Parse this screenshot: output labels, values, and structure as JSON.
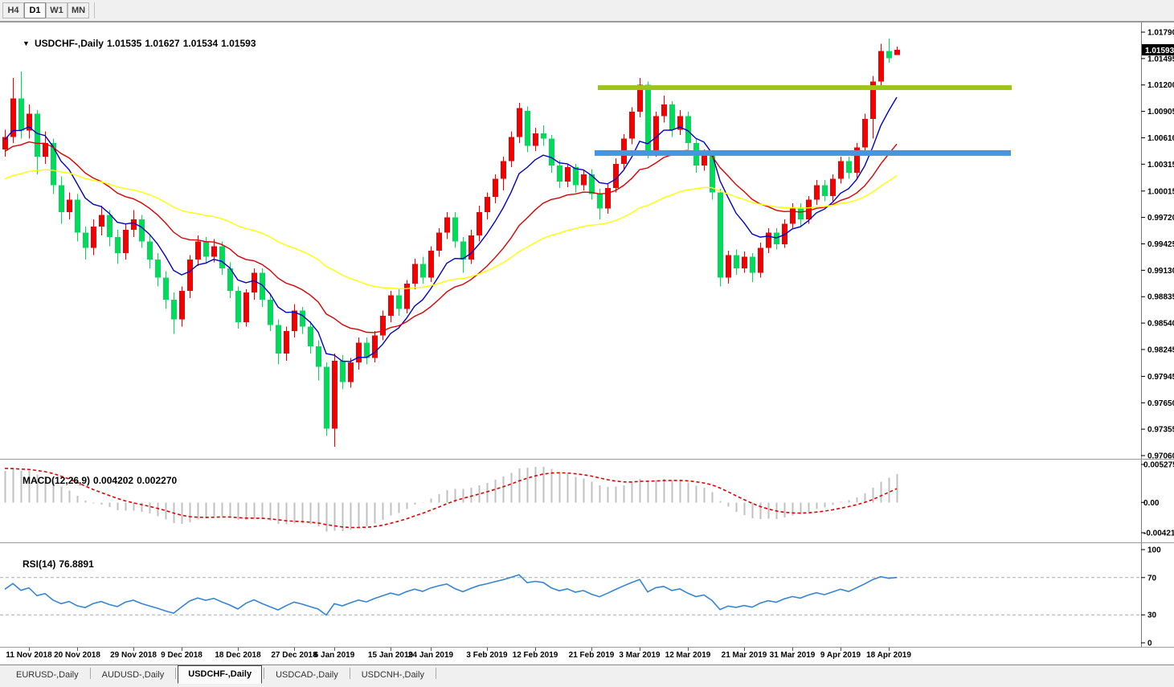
{
  "toolbar": {
    "timeframes": [
      {
        "label": "H4",
        "active": false
      },
      {
        "label": "D1",
        "active": true
      },
      {
        "label": "W1",
        "active": false
      },
      {
        "label": "MN",
        "active": false
      }
    ]
  },
  "main_chart": {
    "header": {
      "dropdown_glyph": "▼",
      "symbol": "USDCHF-,Daily",
      "open": "1.01535",
      "high": "1.01627",
      "low": "1.01534",
      "close": "1.01593"
    },
    "current_price_label": "1.01593"
  },
  "chart_data": {
    "type": "candlestick",
    "symbol": "USDCHF-,Daily",
    "timeframe": "D1",
    "bull_color": "#f20000",
    "bear_color": "#00dc5a",
    "price_axis": {
      "max": 1.0179,
      "min": 0.9706,
      "ticks": [
        "1.01790",
        "1.01495",
        "1.01200",
        "1.00905",
        "1.00610",
        "1.00315",
        "1.00015",
        "0.99720",
        "0.99425",
        "0.99130",
        "0.98835",
        "0.98540",
        "0.98245",
        "0.97945",
        "0.97650",
        "0.97355",
        "0.97060"
      ]
    },
    "current_price": 1.01593,
    "candles": [
      [
        1.0048,
        1.007,
        1.004,
        1.0062
      ],
      [
        1.0062,
        1.0128,
        1.0055,
        1.0105
      ],
      [
        1.0105,
        1.0135,
        1.006,
        1.0069
      ],
      [
        1.0069,
        1.0098,
        1.006,
        1.0088
      ],
      [
        1.0088,
        1.0092,
        1.002,
        1.004
      ],
      [
        1.004,
        1.0068,
        1.0032,
        1.0055
      ],
      [
        1.0055,
        1.006,
        0.9998,
        1.0008
      ],
      [
        1.0008,
        1.0018,
        0.9965,
        0.9978
      ],
      [
        0.9978,
        1.0,
        0.997,
        0.9992
      ],
      [
        0.9992,
        0.9998,
        0.9945,
        0.9955
      ],
      [
        0.9955,
        0.9962,
        0.9925,
        0.9938
      ],
      [
        0.9938,
        0.997,
        0.993,
        0.9962
      ],
      [
        0.9962,
        0.9985,
        0.9952,
        0.9975
      ],
      [
        0.9975,
        0.998,
        0.994,
        0.995
      ],
      [
        0.995,
        0.9958,
        0.992,
        0.9932
      ],
      [
        0.9932,
        0.9965,
        0.9925,
        0.9958
      ],
      [
        0.9958,
        0.998,
        0.995,
        0.997
      ],
      [
        0.997,
        0.9975,
        0.9938,
        0.9945
      ],
      [
        0.9945,
        0.9952,
        0.9915,
        0.9925
      ],
      [
        0.9925,
        0.9932,
        0.9895,
        0.9905
      ],
      [
        0.9905,
        0.9912,
        0.987,
        0.988
      ],
      [
        0.988,
        0.9888,
        0.9842,
        0.9858
      ],
      [
        0.9858,
        0.9895,
        0.985,
        0.989
      ],
      [
        0.989,
        0.993,
        0.9882,
        0.9925
      ],
      [
        0.9925,
        0.9952,
        0.9918,
        0.9945
      ],
      [
        0.9945,
        0.995,
        0.992,
        0.9928
      ],
      [
        0.9928,
        0.9948,
        0.9922,
        0.994
      ],
      [
        0.994,
        0.9945,
        0.9908,
        0.9915
      ],
      [
        0.9915,
        0.9922,
        0.9882,
        0.989
      ],
      [
        0.989,
        0.9895,
        0.9848,
        0.9855
      ],
      [
        0.9855,
        0.9892,
        0.985,
        0.9888
      ],
      [
        0.9888,
        0.9915,
        0.988,
        0.991
      ],
      [
        0.991,
        0.9915,
        0.9872,
        0.988
      ],
      [
        0.988,
        0.9886,
        0.9845,
        0.9852
      ],
      [
        0.9852,
        0.9858,
        0.9808,
        0.982
      ],
      [
        0.982,
        0.985,
        0.9812,
        0.9845
      ],
      [
        0.9845,
        0.9875,
        0.9838,
        0.9868
      ],
      [
        0.9868,
        0.9872,
        0.9842,
        0.985
      ],
      [
        0.985,
        0.9856,
        0.982,
        0.9828
      ],
      [
        0.9828,
        0.9835,
        0.979,
        0.9805
      ],
      [
        0.9805,
        0.981,
        0.9728,
        0.9736
      ],
      [
        0.9736,
        0.982,
        0.9716,
        0.9812
      ],
      [
        0.9812,
        0.9818,
        0.978,
        0.9788
      ],
      [
        0.9788,
        0.9815,
        0.9782,
        0.981
      ],
      [
        0.981,
        0.9838,
        0.9802,
        0.9832
      ],
      [
        0.9832,
        0.9838,
        0.9808,
        0.9815
      ],
      [
        0.9815,
        0.9845,
        0.981,
        0.984
      ],
      [
        0.984,
        0.9868,
        0.9835,
        0.9862
      ],
      [
        0.9862,
        0.989,
        0.9855,
        0.9885
      ],
      [
        0.9885,
        0.9892,
        0.9862,
        0.987
      ],
      [
        0.987,
        0.9902,
        0.9865,
        0.9898
      ],
      [
        0.9898,
        0.9926,
        0.9892,
        0.992
      ],
      [
        0.992,
        0.9928,
        0.9898,
        0.9905
      ],
      [
        0.9905,
        0.994,
        0.99,
        0.9935
      ],
      [
        0.9935,
        0.996,
        0.9928,
        0.9955
      ],
      [
        0.9955,
        0.9978,
        0.9948,
        0.9972
      ],
      [
        0.9972,
        0.9978,
        0.9938,
        0.9945
      ],
      [
        0.9945,
        0.995,
        0.991,
        0.9925
      ],
      [
        0.9925,
        0.9958,
        0.992,
        0.9952
      ],
      [
        0.9952,
        0.9985,
        0.9945,
        0.9978
      ],
      [
        0.9978,
        1.0,
        0.997,
        0.9995
      ],
      [
        0.9995,
        1.002,
        0.9988,
        1.0015
      ],
      [
        1.0015,
        1.004,
        1.0002,
        1.0035
      ],
      [
        1.0035,
        1.0068,
        1.0028,
        1.0062
      ],
      [
        1.0062,
        1.01,
        1.0055,
        1.0094
      ],
      [
        1.0091,
        1.0096,
        1.0045,
        1.0052
      ],
      [
        1.0052,
        1.0072,
        1.0046,
        1.0066
      ],
      [
        1.0066,
        1.0075,
        1.0052,
        1.006
      ],
      [
        1.006,
        1.0064,
        1.0022,
        1.003
      ],
      [
        1.003,
        1.0036,
        1.0005,
        1.0012
      ],
      [
        1.0012,
        1.0032,
        1.0006,
        1.0028
      ],
      [
        1.0028,
        1.0032,
        1.0,
        1.0008
      ],
      [
        1.0008,
        1.0025,
        1.0002,
        1.002
      ],
      [
        1.002,
        1.0026,
        0.9992,
        0.9998
      ],
      [
        0.9998,
        1.0004,
        0.997,
        0.9982
      ],
      [
        0.9982,
        1.001,
        0.9976,
        1.0005
      ],
      [
        1.0005,
        1.0038,
        1.0,
        1.0032
      ],
      [
        1.0032,
        1.0065,
        1.0026,
        1.006
      ],
      [
        1.006,
        1.0095,
        1.0054,
        1.009
      ],
      [
        1.009,
        1.0128,
        1.0084,
        1.012
      ],
      [
        1.012,
        1.0124,
        1.0038,
        1.0045
      ],
      [
        1.0045,
        1.009,
        1.004,
        1.0085
      ],
      [
        1.0085,
        1.0108,
        1.0078,
        1.0098
      ],
      [
        1.0098,
        1.0102,
        1.0062,
        1.007
      ],
      [
        1.007,
        1.0092,
        1.0064,
        1.0085
      ],
      [
        1.0085,
        1.009,
        1.0048,
        1.0055
      ],
      [
        1.0055,
        1.006,
        1.0022,
        1.003
      ],
      [
        1.003,
        1.0048,
        1.0024,
        1.0042
      ],
      [
        1.0042,
        1.0046,
        0.9992,
        1.0
      ],
      [
        1.0,
        1.0004,
        0.9895,
        0.9905
      ],
      [
        0.9905,
        0.9935,
        0.9898,
        0.993
      ],
      [
        0.993,
        0.9936,
        0.9908,
        0.9915
      ],
      [
        0.9915,
        0.9934,
        0.991,
        0.9928
      ],
      [
        0.9928,
        0.9932,
        0.99,
        0.991
      ],
      [
        0.991,
        0.9944,
        0.9905,
        0.9938
      ],
      [
        0.9938,
        0.996,
        0.9932,
        0.9955
      ],
      [
        0.9955,
        0.996,
        0.9936,
        0.9942
      ],
      [
        0.9942,
        0.997,
        0.9938,
        0.9965
      ],
      [
        0.9965,
        0.9988,
        0.996,
        0.9982
      ],
      [
        0.9982,
        0.9988,
        0.9962,
        0.997
      ],
      [
        0.997,
        0.9996,
        0.9965,
        0.9992
      ],
      [
        0.9992,
        1.0014,
        0.9986,
        1.0008
      ],
      [
        1.0008,
        1.0014,
        0.999,
        0.9996
      ],
      [
        0.9996,
        1.002,
        0.999,
        1.0015
      ],
      [
        1.0015,
        1.004,
        1.001,
        1.0035
      ],
      [
        1.0035,
        1.004,
        1.0015,
        1.0022
      ],
      [
        1.0022,
        1.0055,
        1.0016,
        1.005
      ],
      [
        1.005,
        1.0088,
        1.0044,
        1.0082
      ],
      [
        1.0082,
        1.013,
        1.006,
        1.0124
      ],
      [
        1.0124,
        1.0166,
        1.0118,
        1.0158
      ],
      [
        1.0158,
        1.0172,
        1.0145,
        1.015
      ],
      [
        1.01535,
        1.01627,
        1.01534,
        1.01593
      ]
    ],
    "moving_averages": [
      {
        "name": "ma-fast-blue",
        "period": 8,
        "color": "#0000c8",
        "seed": 1.0058
      },
      {
        "name": "ma-medium-red",
        "period": 20,
        "color": "#dc0000",
        "seed": 1.0044
      },
      {
        "name": "ma-slow-yellow",
        "period": 48,
        "color": "#ffff00",
        "seed": 1.0013
      }
    ],
    "hlines": [
      {
        "name": "resistance-line",
        "price": 1.0117,
        "color": "#9ec41a",
        "thickness": 6,
        "x_from": 744,
        "x_to": 1259
      },
      {
        "name": "support-line",
        "price": 1.0044,
        "color": "#4596e0",
        "thickness": 7,
        "x_from": 740,
        "x_to": 1258
      }
    ],
    "x_ticks": [
      {
        "index": 3,
        "label": "11 Nov 2018"
      },
      {
        "index": 9,
        "label": "20 Nov 2018"
      },
      {
        "index": 16,
        "label": "29 Nov 2018"
      },
      {
        "index": 22,
        "label": "9 Dec 2018"
      },
      {
        "index": 29,
        "label": "18 Dec 2018"
      },
      {
        "index": 36,
        "label": "27 Dec 2018"
      },
      {
        "index": 41,
        "label": "6 Jan 2019"
      },
      {
        "index": 48,
        "label": "15 Jan 2019"
      },
      {
        "index": 53,
        "label": "24 Jan 2019"
      },
      {
        "index": 60,
        "label": "3 Feb 2019"
      },
      {
        "index": 66,
        "label": "12 Feb 2019"
      },
      {
        "index": 73,
        "label": "21 Feb 2019"
      },
      {
        "index": 79,
        "label": "3 Mar 2019"
      },
      {
        "index": 85,
        "label": "12 Mar 2019"
      },
      {
        "index": 92,
        "label": "21 Mar 2019"
      },
      {
        "index": 98,
        "label": "31 Mar 2019"
      },
      {
        "index": 104,
        "label": "9 Apr 2019"
      },
      {
        "index": 110,
        "label": "18 Apr 2019"
      }
    ],
    "macd": {
      "label": "MACD(12,26,9)",
      "value_main": "0.004202",
      "value_signal": "0.002270",
      "fast": 12,
      "slow": 26,
      "signal": 9,
      "seed_fast": 1.0035,
      "seed_slow": 0.999,
      "seed_signal": 0.0048,
      "axis_max": 0.005275,
      "axis_min": -0.00421,
      "axis_ticks": [
        "0.005275",
        "0.00",
        "-0.00421"
      ],
      "hist_color": "#c0c0c0",
      "signal_color": "#e00000"
    },
    "rsi": {
      "label": "RSI(14)",
      "value": "76.8891",
      "period": 14,
      "seed_gain": 0.00115,
      "seed_loss": 0.00085,
      "levels": [
        100,
        70,
        30,
        0
      ],
      "dashed_levels": [
        70,
        30
      ],
      "color": "#3585d6"
    }
  },
  "tabs": [
    {
      "label": "EURUSD-,Daily",
      "active": false
    },
    {
      "label": "AUDUSD-,Daily",
      "active": false
    },
    {
      "label": "USDCHF-,Daily",
      "active": true
    },
    {
      "label": "USDCAD-,Daily",
      "active": false
    },
    {
      "label": "USDCNH-,Daily",
      "active": false
    }
  ]
}
